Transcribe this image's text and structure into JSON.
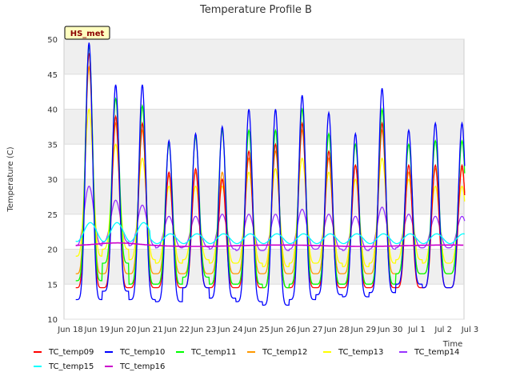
{
  "chart_data": {
    "type": "line",
    "title": "Temperature Profile B",
    "xlabel": "Time",
    "ylabel": "Temperature (C)",
    "badge": "HS_met",
    "x_tick_labels": [
      "Jun 18",
      "Jun 19",
      "Jun 20",
      "Jun 21",
      "Jun 22",
      "Jun 23",
      "Jun 24",
      "Jun 25",
      "Jun 26",
      "Jun 27",
      "Jun 28",
      "Jun 29",
      "Jun 30",
      "Jul 1",
      "Jul 2",
      "Jul 3"
    ],
    "y_ticks": [
      10,
      15,
      20,
      25,
      30,
      35,
      40,
      45,
      50
    ],
    "ylim": [
      10,
      50
    ],
    "xlim_days": [
      0,
      15
    ],
    "grid": "horizontal bands",
    "legend_position": "bottom",
    "series": [
      {
        "name": "TC_temp09",
        "color": "#ff0000"
      },
      {
        "name": "TC_temp10",
        "color": "#0000ff"
      },
      {
        "name": "TC_temp11",
        "color": "#00ff00"
      },
      {
        "name": "TC_temp12",
        "color": "#ff9900"
      },
      {
        "name": "TC_temp13",
        "color": "#ffff00"
      },
      {
        "name": "TC_temp14",
        "color": "#9933ff"
      },
      {
        "name": "TC_temp15",
        "color": "#00ffff"
      },
      {
        "name": "TC_temp16",
        "color": "#cc00cc"
      }
    ],
    "daily_peaks_approx": {
      "TC_temp10": [
        49.5,
        43.5,
        43.5,
        35.5,
        36.5,
        37.5,
        40,
        40,
        42,
        39.5,
        36.5,
        43,
        37,
        38
      ],
      "TC_temp11": [
        49,
        41.5,
        40.5,
        35,
        36,
        37,
        37,
        37,
        40,
        36.5,
        35,
        40,
        35,
        35.5
      ],
      "TC_temp09": [
        48,
        39,
        38,
        31,
        31.5,
        30,
        34,
        35,
        38,
        34,
        32,
        38,
        32,
        32
      ],
      "TC_temp12": [
        46,
        38,
        37,
        30.5,
        31,
        31,
        33,
        34,
        37,
        33,
        32,
        37,
        31,
        31.5
      ],
      "TC_temp13": [
        40,
        35,
        33,
        29,
        29,
        29,
        31,
        31.5,
        33,
        31,
        30,
        33,
        30,
        29
      ],
      "TC_temp14": [
        29,
        27,
        26.3,
        24.7,
        24.7,
        25,
        25,
        25,
        25.7,
        25,
        24.7,
        26,
        25,
        24.7
      ]
    },
    "daily_minima_approx": {
      "TC_temp10": [
        12.8,
        14,
        12.8,
        12.5,
        14.5,
        13,
        12.5,
        12,
        12.8,
        13.5,
        13.2,
        13.8,
        15,
        14.5
      ],
      "TC_temp11": [
        15.5,
        18,
        15,
        15,
        16,
        15,
        15,
        14.5,
        15,
        15,
        15,
        15,
        16.5,
        16.5
      ],
      "TC_temp13": [
        19,
        20,
        18.5,
        18,
        18.5,
        18,
        18,
        17.5,
        18,
        18,
        17.5,
        18,
        18.5,
        18
      ],
      "TC_temp14": [
        20.5,
        21,
        20.5,
        20.2,
        20.3,
        20,
        19.8,
        19.8,
        20,
        20,
        19.8,
        20,
        20.2,
        20.2
      ]
    },
    "TC_temp15_range": [
      20.8,
      23.5
    ],
    "TC_temp16_level": 20.5
  }
}
